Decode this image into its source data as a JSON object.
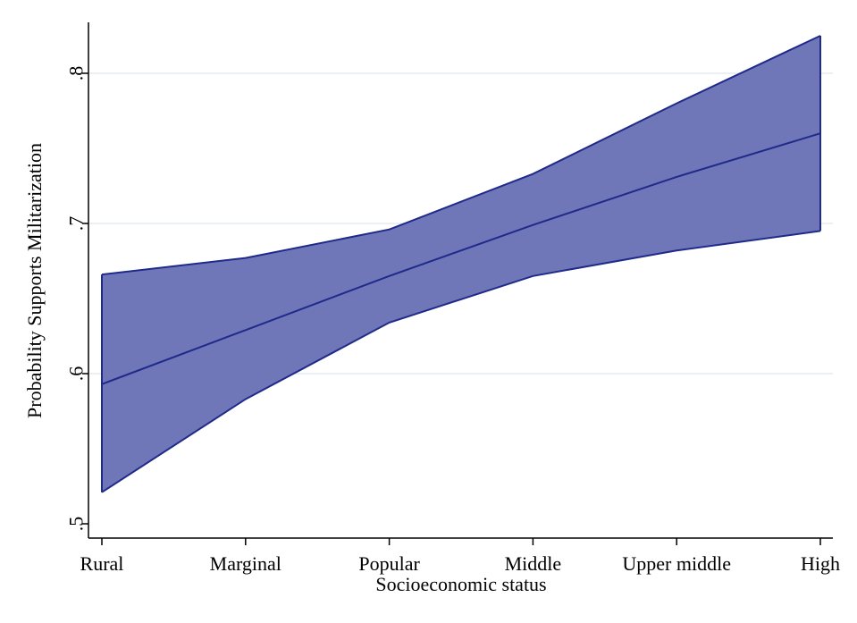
{
  "chart_data": {
    "type": "area",
    "title": "",
    "xlabel": "Socioeconomic status",
    "ylabel": "Probability Supports Militarization",
    "categories": [
      "Rural",
      "Marginal",
      "Popular",
      "Middle",
      "Upper middle",
      "High"
    ],
    "series": [
      {
        "values": [
          0.593,
          0.629,
          0.665,
          0.699,
          0.731,
          0.76
        ],
        "ci_lower": [
          0.521,
          0.583,
          0.634,
          0.665,
          0.682,
          0.695
        ],
        "ci_upper": [
          0.666,
          0.677,
          0.696,
          0.733,
          0.78,
          0.825
        ]
      }
    ],
    "ylim": [
      0.49,
      0.835
    ],
    "yticks": [
      0.5,
      0.6,
      0.7,
      0.8
    ],
    "ytick_labels": [
      ".5",
      ".6",
      ".7",
      ".8"
    ],
    "grid": true,
    "colors": {
      "band_fill": "#6f77b8",
      "line": "#1f2a8a",
      "grid": "#e3ecf0",
      "axis": "#000000"
    }
  }
}
